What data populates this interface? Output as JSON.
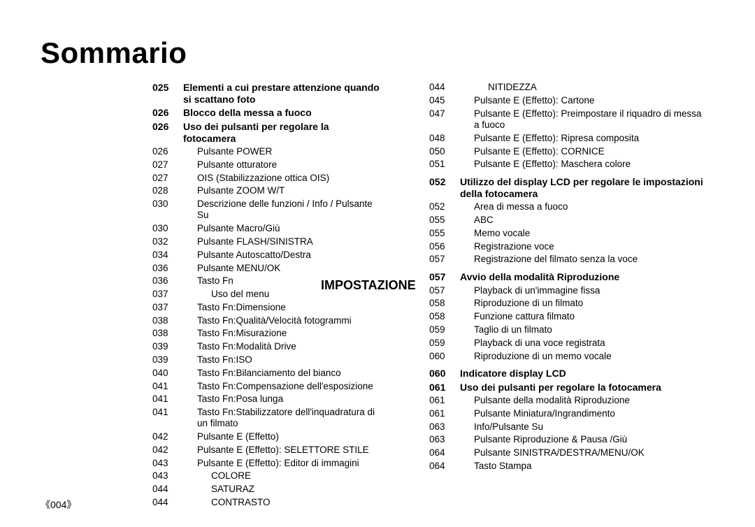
{
  "page_title": "Sommario",
  "section_label": "IMPOSTAZIONE",
  "page_number": "《004》",
  "colors": {
    "text": "#000000",
    "bg": "#ffffff"
  },
  "typography": {
    "title_fontsize": 42,
    "section_fontsize": 18,
    "body_fontsize": 13.5,
    "font_family": "Arial"
  },
  "left": [
    {
      "pg": "025",
      "txt": "Elementi a cui prestare attenzione quando si scattano foto",
      "bold": true
    },
    {
      "pg": "026",
      "txt": "Blocco della messa a fuoco",
      "bold": true
    },
    {
      "pg": "026",
      "txt": "Uso dei pulsanti per regolare la fotocamera",
      "bold": true
    },
    {
      "pg": "026",
      "txt": "Pulsante POWER",
      "indent": 1
    },
    {
      "pg": "027",
      "txt": "Pulsante otturatore",
      "indent": 1
    },
    {
      "pg": "027",
      "txt": "OIS (Stabilizzazione ottica OIS)",
      "indent": 1
    },
    {
      "pg": "028",
      "txt": "Pulsante ZOOM W/T",
      "indent": 1
    },
    {
      "pg": "030",
      "txt": "Descrizione delle funzioni / Info / Pulsante Su",
      "indent": 1
    },
    {
      "pg": "030",
      "txt": "Pulsante Macro/Giù",
      "indent": 1
    },
    {
      "pg": "032",
      "txt": "Pulsante FLASH/SINISTRA",
      "indent": 1
    },
    {
      "pg": "034",
      "txt": "Pulsante Autoscatto/Destra",
      "indent": 1
    },
    {
      "pg": "036",
      "txt": "Pulsante MENU/OK",
      "indent": 1
    },
    {
      "pg": "036",
      "txt": "Tasto Fn",
      "indent": 1
    },
    {
      "pg": "037",
      "txt": "Uso del menu",
      "indent": 2
    },
    {
      "pg": "037",
      "txt": "Tasto Fn:Dimensione",
      "indent": 1
    },
    {
      "pg": "038",
      "txt": "Tasto Fn:Qualità/Velocità fotogrammi",
      "indent": 1
    },
    {
      "pg": "038",
      "txt": "Tasto Fn:Misurazione",
      "indent": 1
    },
    {
      "pg": "039",
      "txt": "Tasto Fn:Modalità Drive",
      "indent": 1
    },
    {
      "pg": "039",
      "txt": "Tasto Fn:ISO",
      "indent": 1
    },
    {
      "pg": "040",
      "txt": "Tasto Fn:Bilanciamento del bianco",
      "indent": 1
    },
    {
      "pg": "041",
      "txt": "Tasto Fn:Compensazione dell'esposizione",
      "indent": 1
    },
    {
      "pg": "041",
      "txt": "Tasto Fn:Posa lunga",
      "indent": 1
    },
    {
      "pg": "041",
      "txt": "Tasto Fn:Stabilizzatore dell'inquadratura di un filmato",
      "indent": 1
    },
    {
      "pg": "042",
      "txt": "Pulsante E (Effetto)",
      "indent": 1
    },
    {
      "pg": "042",
      "txt": "Pulsante E (Effetto): SELETTORE STILE",
      "indent": 1
    },
    {
      "pg": "043",
      "txt": "Pulsante E (Effetto): Editor di immagini",
      "indent": 1
    },
    {
      "pg": "043",
      "txt": "COLORE",
      "indent": 2
    },
    {
      "pg": "044",
      "txt": "SATURAZ",
      "indent": 2
    },
    {
      "pg": "044",
      "txt": "CONTRASTO",
      "indent": 2
    }
  ],
  "right": [
    {
      "pg": "044",
      "txt": "NITIDEZZA",
      "indent": 2
    },
    {
      "pg": "045",
      "txt": "Pulsante E (Effetto): Cartone",
      "indent": 1
    },
    {
      "pg": "047",
      "txt": "Pulsante E (Effetto): Preimpostare il riquadro di messa a fuoco",
      "indent": 1
    },
    {
      "pg": "048",
      "txt": "Pulsante E (Effetto): Ripresa composita",
      "indent": 1
    },
    {
      "pg": "050",
      "txt": "Pulsante E (Effetto): CORNICE",
      "indent": 1
    },
    {
      "pg": "051",
      "txt": "Pulsante E (Effetto): Maschera colore",
      "indent": 1
    },
    {
      "gap": true
    },
    {
      "pg": "052",
      "txt": "Utilizzo del display LCD per regolare le impostazioni della fotocamera",
      "bold": true
    },
    {
      "pg": "052",
      "txt": "Area di messa a fuoco",
      "indent": 1
    },
    {
      "pg": "055",
      "txt": "ABC",
      "indent": 1
    },
    {
      "pg": "055",
      "txt": "Memo vocale",
      "indent": 1
    },
    {
      "pg": "056",
      "txt": "Registrazione voce",
      "indent": 1
    },
    {
      "pg": "057",
      "txt": "Registrazione del filmato senza la voce",
      "indent": 1
    },
    {
      "gap": true
    },
    {
      "pg": "057",
      "txt": "Avvio della modalità Riproduzione",
      "bold": true
    },
    {
      "pg": "057",
      "txt": "Playback di un'immagine fissa",
      "indent": 1
    },
    {
      "pg": "058",
      "txt": "Riproduzione di un filmato",
      "indent": 1
    },
    {
      "pg": "058",
      "txt": "Funzione cattura filmato",
      "indent": 1
    },
    {
      "pg": "059",
      "txt": "Taglio di un filmato",
      "indent": 1
    },
    {
      "pg": "059",
      "txt": "Playback di una voce registrata",
      "indent": 1
    },
    {
      "pg": "060",
      "txt": "Riproduzione di un memo vocale",
      "indent": 1
    },
    {
      "gap": true
    },
    {
      "pg": "060",
      "txt": "Indicatore display LCD",
      "bold": true
    },
    {
      "pg": "061",
      "txt": "Uso dei pulsanti per regolare la fotocamera",
      "bold": true
    },
    {
      "pg": "061",
      "txt": "Pulsante della modalità Riproduzione",
      "indent": 1
    },
    {
      "pg": "061",
      "txt": "Pulsante Miniatura/Ingrandimento",
      "indent": 1
    },
    {
      "pg": "063",
      "txt": "Info/Pulsante Su",
      "indent": 1
    },
    {
      "pg": "063",
      "txt": "Pulsante Riproduzione & Pausa /Giù",
      "indent": 1
    },
    {
      "pg": "064",
      "txt": "Pulsante SINISTRA/DESTRA/MENU/OK",
      "indent": 1
    },
    {
      "pg": "064",
      "txt": "Tasto Stampa",
      "indent": 1
    }
  ]
}
